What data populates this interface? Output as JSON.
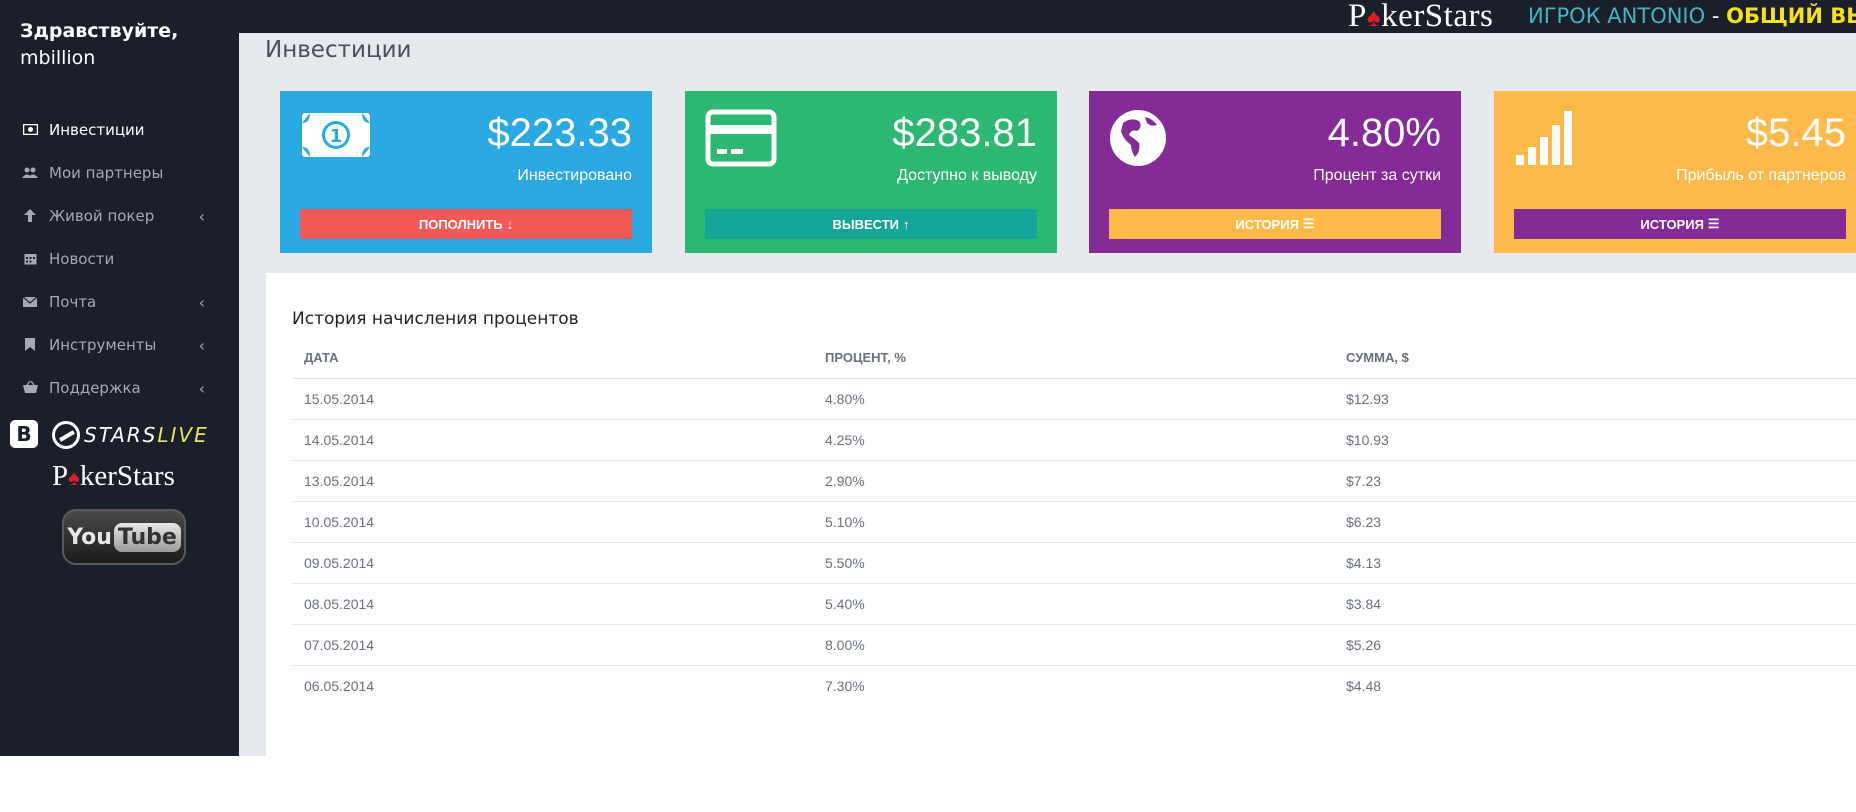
{
  "header": {
    "logo": "PokerStars",
    "player_text": "ИГРОК ANTONIO",
    "separator": " - ",
    "total_text": "ОБЩИЙ ВЫИГ"
  },
  "sidebar": {
    "greeting": "Здравствуйте,",
    "username": "mbillion",
    "items": [
      {
        "label": "Инвестиции",
        "icon": "money-icon",
        "active": true,
        "submenu": false
      },
      {
        "label": "Мои партнеры",
        "icon": "users-icon",
        "active": false,
        "submenu": false
      },
      {
        "label": "Живой покер",
        "icon": "arrow-up-icon",
        "active": false,
        "submenu": true
      },
      {
        "label": "Новости",
        "icon": "calendar-icon",
        "active": false,
        "submenu": false
      },
      {
        "label": "Почта",
        "icon": "envelope-icon",
        "active": false,
        "submenu": true
      },
      {
        "label": "Инструменты",
        "icon": "bookmark-icon",
        "active": false,
        "submenu": true
      },
      {
        "label": "Поддержка",
        "icon": "basket-icon",
        "active": false,
        "submenu": true
      }
    ],
    "social": {
      "vk": "B",
      "starslive_a": "STARS",
      "starslive_b": "LIVE",
      "pokerstars": "PokerStars",
      "youtube_a": "You",
      "youtube_b": "Tube"
    }
  },
  "main": {
    "title": "Инвестиции",
    "cards": [
      {
        "value": "$223.33",
        "label": "Инвестировано",
        "button": "ПОПОЛНИТЬ",
        "icon": "banknote-icon",
        "color": "#29a8e1",
        "button_color": "#f35958"
      },
      {
        "value": "$283.81",
        "label": "Доступно к выводу",
        "button": "ВЫВЕСТИ",
        "icon": "credit-card-icon",
        "color": "#2cb773",
        "button_color": "#15a596"
      },
      {
        "value": "4.80%",
        "label": "Процент за сутки",
        "button": "ИСТОРИЯ",
        "icon": "globe-icon",
        "color": "#852b98",
        "button_color": "#fdb94a"
      },
      {
        "value": "$5.45",
        "label": "Прибыль от партнеров",
        "button": "ИСТОРИЯ",
        "icon": "signal-icon",
        "color": "#fdb94a",
        "button_color": "#852b98"
      }
    ],
    "history": {
      "title": "История начисления процентов",
      "columns": [
        "ДАТА",
        "ПРОЦЕНТ, %",
        "СУММА, $"
      ],
      "rows": [
        [
          "15.05.2014",
          "4.80%",
          "$12.93"
        ],
        [
          "14.05.2014",
          "4.25%",
          "$10.93"
        ],
        [
          "13.05.2014",
          "2.90%",
          "$7.23"
        ],
        [
          "10.05.2014",
          "5.10%",
          "$6.23"
        ],
        [
          "09.05.2014",
          "5.50%",
          "$4.13"
        ],
        [
          "08.05.2014",
          "5.40%",
          "$3.84"
        ],
        [
          "07.05.2014",
          "8.00%",
          "$5.26"
        ],
        [
          "06.05.2014",
          "7.30%",
          "$4.48"
        ]
      ]
    }
  }
}
